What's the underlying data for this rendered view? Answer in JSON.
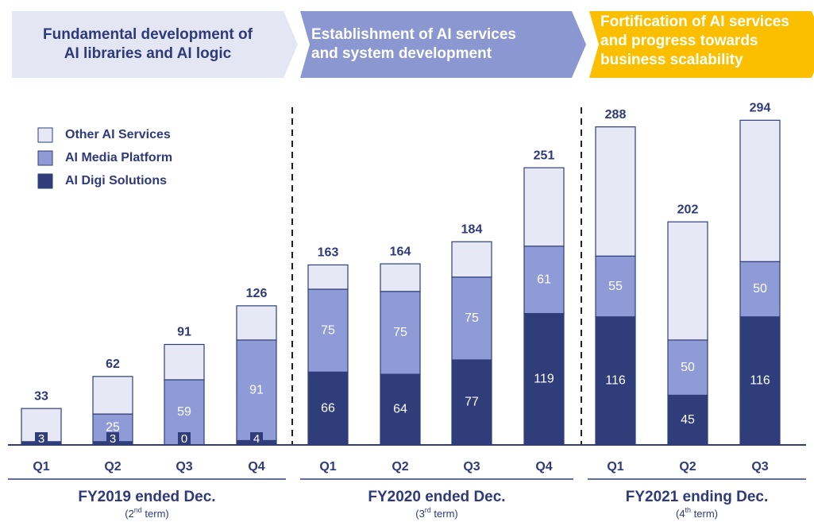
{
  "chart_data": {
    "type": "stacked_bar",
    "banners": [
      {
        "lines": [
          "Fundamental development of",
          "AI libraries and AI logic"
        ],
        "color": "#e4e6f3",
        "text_color": "#2e3a7a"
      },
      {
        "lines": [
          "Establishment of AI services",
          "and system development"
        ],
        "color": "#8b97d1",
        "text_color": "#ffffff"
      },
      {
        "lines": [
          "Fortification of AI services",
          "and progress towards",
          "business scalability"
        ],
        "color": "#fbbf00",
        "text_color": "#ffffff"
      }
    ],
    "categories": [
      "Q1",
      "Q2",
      "Q3",
      "Q4",
      "Q1",
      "Q2",
      "Q3",
      "Q4",
      "Q1",
      "Q2",
      "Q3"
    ],
    "groups": [
      {
        "label": "FY2019 ended Dec.",
        "term": [
          "(2",
          "nd",
          " term)"
        ]
      },
      {
        "label": "FY2020 ended Dec.",
        "term": [
          "(3",
          "rd",
          " term)"
        ]
      },
      {
        "label": "FY2021 ending Dec.",
        "term": [
          "(4",
          "th",
          " term)"
        ]
      }
    ],
    "series": [
      {
        "name": "AI Digi Solutions",
        "color": "#2f3e7a",
        "show_labels": true,
        "values": [
          3,
          3,
          0,
          4,
          66,
          64,
          77,
          119,
          116,
          45,
          116
        ]
      },
      {
        "name": "AI Media Platform",
        "color": "#8f9bd6",
        "show_labels": true,
        "values": [
          null,
          25,
          59,
          91,
          75,
          75,
          75,
          61,
          55,
          50,
          50
        ]
      },
      {
        "name": "Other AI Services",
        "color": "#e6e8f5",
        "show_labels": false,
        "values": [
          30,
          34,
          32,
          31,
          22,
          25,
          32,
          71,
          117,
          107,
          128
        ]
      }
    ],
    "totals": [
      33,
      62,
      91,
      126,
      163,
      164,
      184,
      251,
      288,
      202,
      294
    ],
    "ylim": [
      0,
      300
    ]
  }
}
